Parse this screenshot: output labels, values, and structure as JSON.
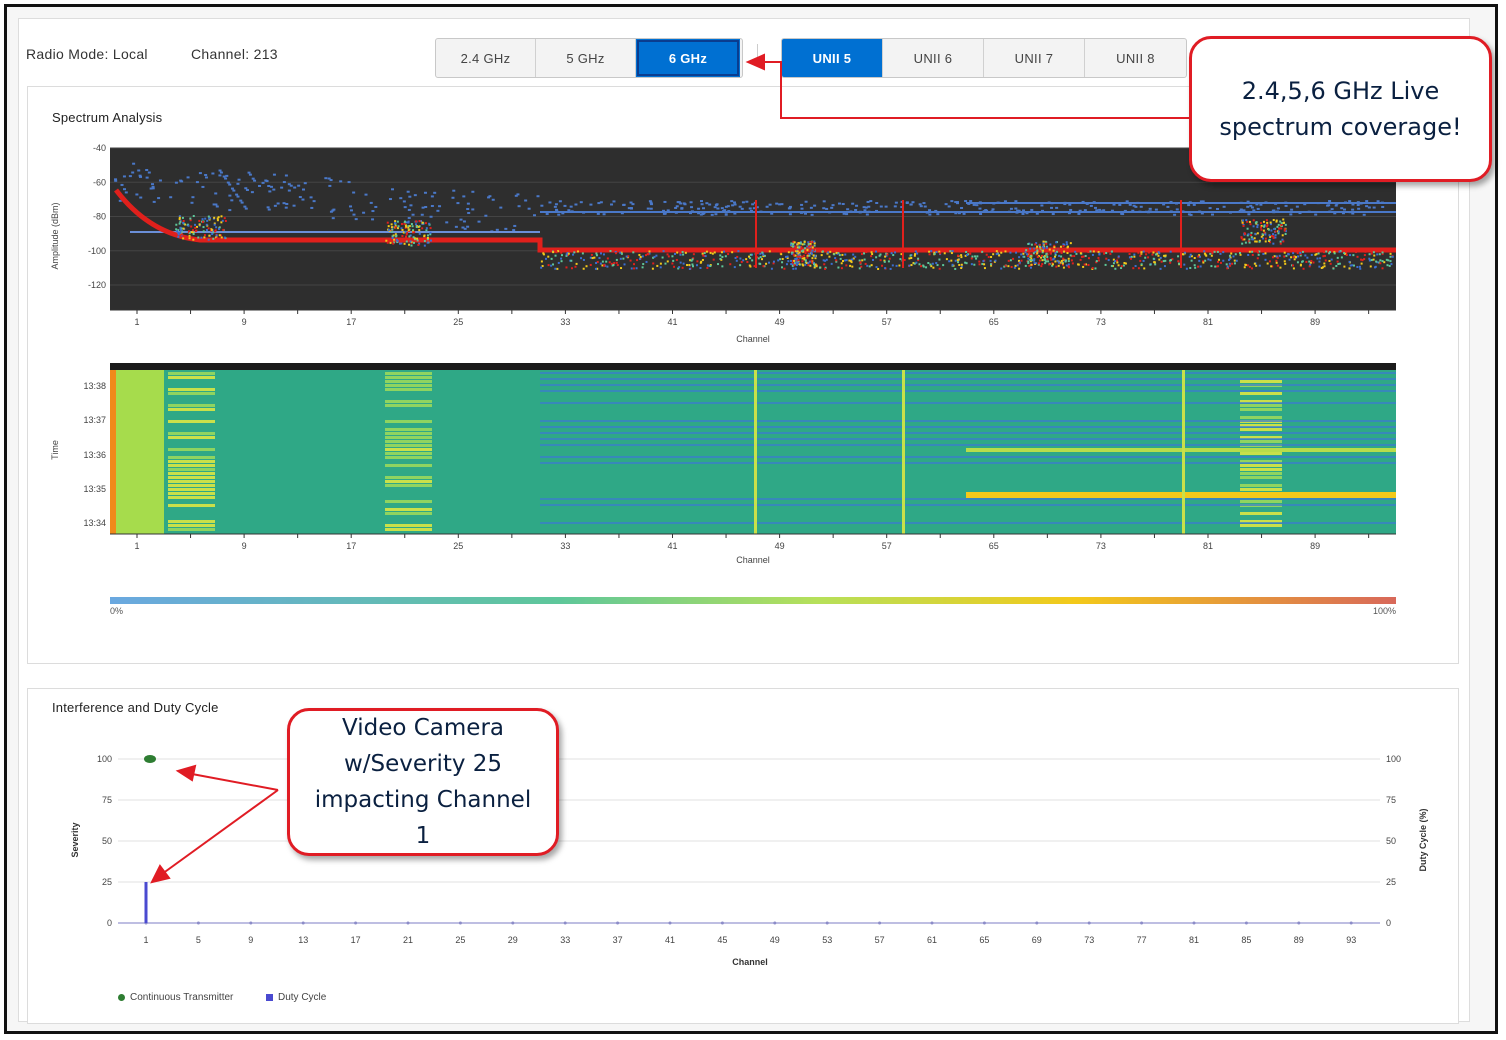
{
  "header": {
    "radio_mode": "Radio Mode: Local",
    "channel": "Channel: 213"
  },
  "band_tabs": [
    {
      "label": "2.4 GHz",
      "active": false
    },
    {
      "label": "5 GHz",
      "active": false
    },
    {
      "label": "6 GHz",
      "active": true
    }
  ],
  "unii_tabs": [
    {
      "label": "UNII 5",
      "active": true
    },
    {
      "label": "UNII 6",
      "active": false
    },
    {
      "label": "UNII 7",
      "active": false
    },
    {
      "label": "UNII 8",
      "active": false
    }
  ],
  "spectrum": {
    "title": "Spectrum Analysis",
    "amplitude_ylabel": "Amplitude (dBm)",
    "amplitude_yticks": [
      "-40",
      "-60",
      "-80",
      "-100",
      "-120"
    ],
    "channel_ticks": [
      "1",
      "9",
      "17",
      "25",
      "33",
      "41",
      "49",
      "57",
      "65",
      "73",
      "81",
      "89"
    ],
    "xlabel": "Channel",
    "time_ylabel": "Time",
    "time_ticks": [
      "13:38",
      "13:37",
      "13:36",
      "13:35",
      "13:34"
    ],
    "colorbar_min": "0%",
    "colorbar_max": "100%"
  },
  "interference": {
    "title": "Interference and Duty Cycle",
    "severity_label": "Severity",
    "duty_label": "Duty Cycle (%)",
    "yticks": [
      "100",
      "75",
      "50",
      "25",
      "0"
    ],
    "xticks": [
      "1",
      "5",
      "9",
      "13",
      "17",
      "21",
      "25",
      "29",
      "33",
      "37",
      "41",
      "45",
      "49",
      "53",
      "57",
      "61",
      "65",
      "69",
      "73",
      "77",
      "81",
      "85",
      "89",
      "93"
    ],
    "xlabel": "Channel",
    "legend_continuous": "Continuous Transmitter",
    "legend_duty": "Duty Cycle"
  },
  "chart_data": [
    {
      "type": "scatter",
      "title": "Interference and Duty Cycle",
      "xlabel": "Channel",
      "ylabel": "Severity",
      "y2label": "Duty Cycle (%)",
      "ylim": [
        0,
        100
      ],
      "series": [
        {
          "name": "Continuous Transmitter",
          "x": [
            1
          ],
          "y": [
            100
          ]
        },
        {
          "name": "Duty Cycle",
          "x": [
            1
          ],
          "y": [
            25
          ]
        }
      ]
    }
  ],
  "annotations": {
    "coverage_callout": "2.4,5,6 GHz Live spectrum coverage!",
    "camera_callout": "Video Camera w/Severity 25 impacting Channel 1"
  },
  "colors": {
    "accent": "#0070d2",
    "callout_border": "#e01c24",
    "continuous": "#2e7d32",
    "duty": "#4a4ad0"
  }
}
